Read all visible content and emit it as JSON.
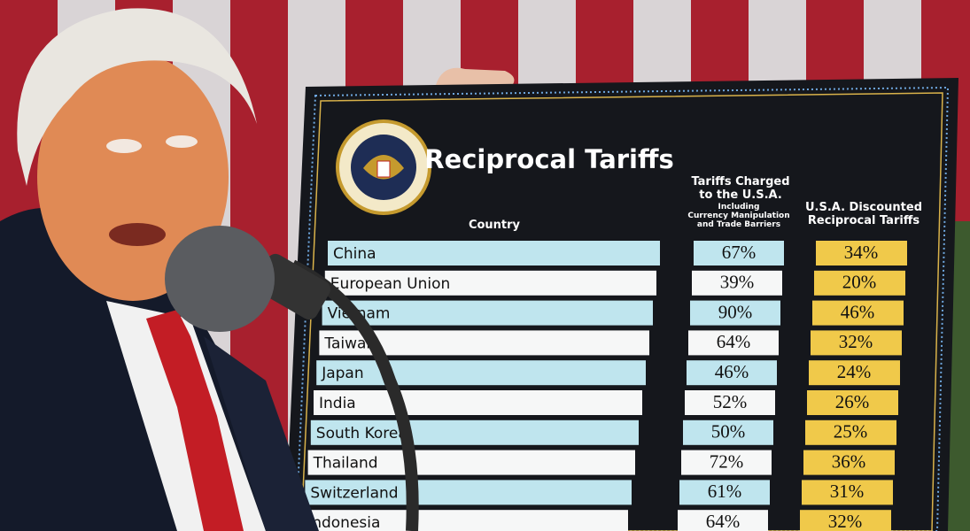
{
  "board": {
    "title": "Reciprocal Tariffs",
    "country_header": "Country",
    "charged_header": [
      "Tariffs Charged",
      "to the U.S.A."
    ],
    "charged_note": [
      "Including",
      "Currency Manipulation",
      "and Trade Barriers"
    ],
    "discounted_header": [
      "U.S.A. Discounted",
      "Reciprocal Tariffs"
    ],
    "rows": [
      [
        "China",
        "67%",
        "34%"
      ],
      [
        "European Union",
        "39%",
        "20%"
      ],
      [
        "Vietnam",
        "90%",
        "46%"
      ],
      [
        "Taiwan",
        "64%",
        "32%"
      ],
      [
        "Japan",
        "46%",
        "24%"
      ],
      [
        "India",
        "52%",
        "26%"
      ],
      [
        "South Korea",
        "50%",
        "25%"
      ],
      [
        "Thailand",
        "72%",
        "36%"
      ],
      [
        "Switzerland",
        "61%",
        "31%"
      ],
      [
        "Indonesia",
        "64%",
        "32%"
      ]
    ]
  }
}
